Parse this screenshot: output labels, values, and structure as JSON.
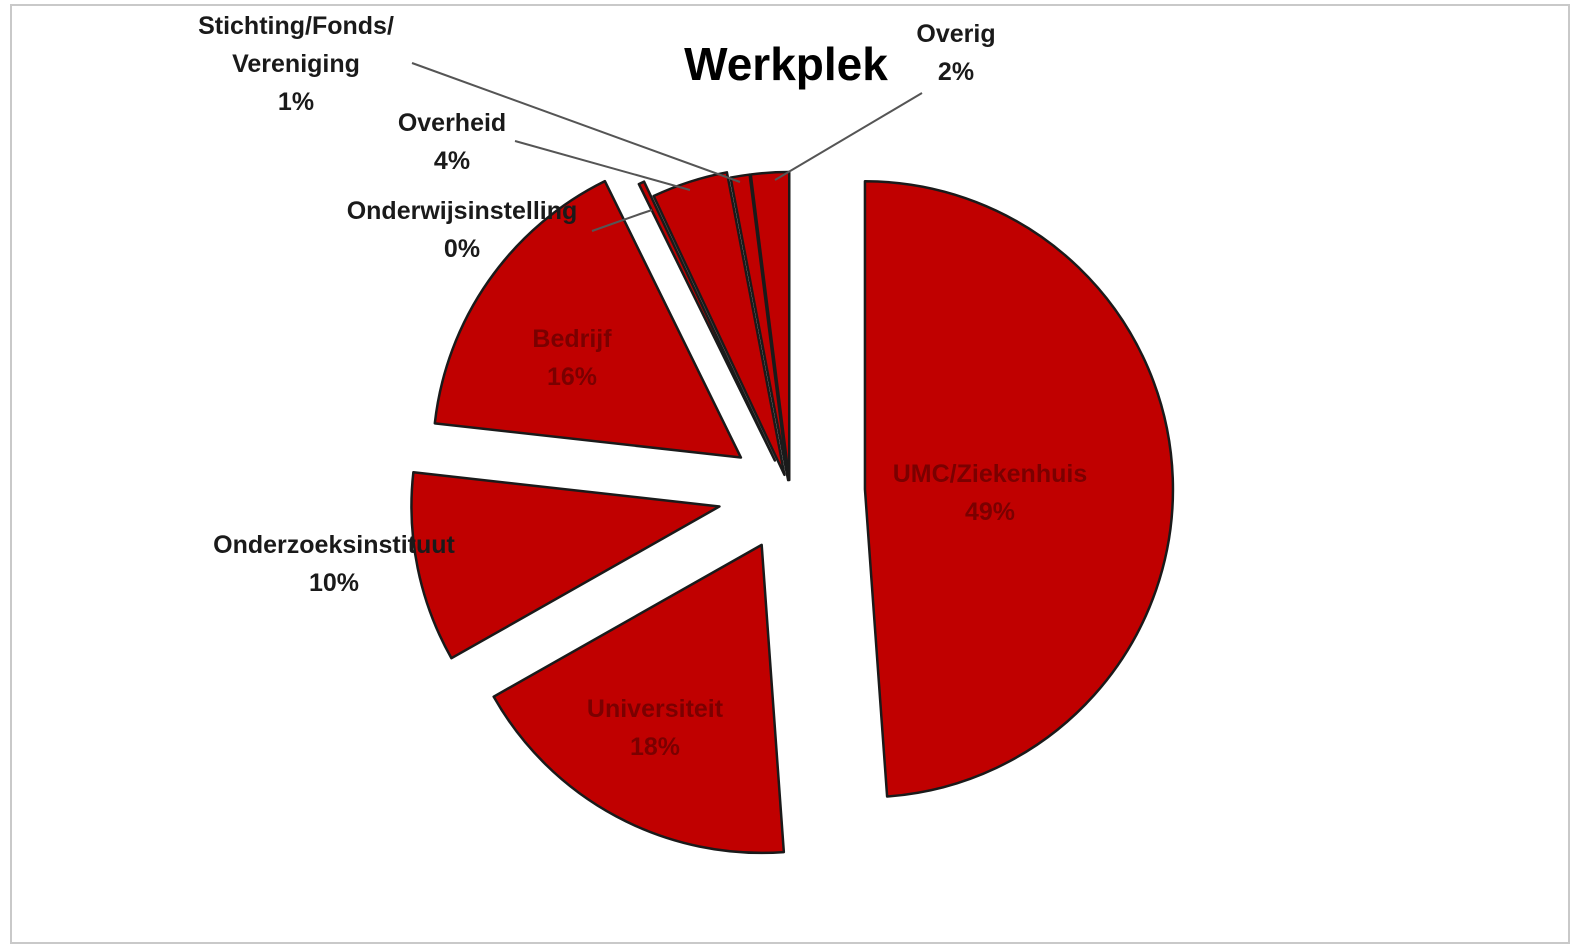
{
  "chart_data": {
    "type": "pie",
    "title": "Werkplek",
    "slices": [
      {
        "label": "UMC/Ziekenhuis",
        "percent_label": "49%",
        "value": 49,
        "label_line1": "UMC/Ziekenhuis",
        "label_line2": "",
        "value_text": "49%"
      },
      {
        "label": "Universiteit",
        "percent_label": "18%",
        "value": 18,
        "label_line1": "Universiteit",
        "label_line2": "",
        "value_text": "18%"
      },
      {
        "label": "Onderzoeksinstituut",
        "percent_label": "10%",
        "value": 10,
        "label_line1": "Onderzoeksinstituut",
        "label_line2": "",
        "value_text": "10%"
      },
      {
        "label": "Bedrijf",
        "percent_label": "16%",
        "value": 16,
        "label_line1": "Bedrijf",
        "label_line2": "",
        "value_text": "16%"
      },
      {
        "label": "Onderwijsinstelling",
        "percent_label": "0%",
        "value": 0.3,
        "label_line1": "Onderwijsinstelling",
        "label_line2": "",
        "value_text": "0%"
      },
      {
        "label": "Overheid",
        "percent_label": "4%",
        "value": 4,
        "label_line1": "Overheid",
        "label_line2": "",
        "value_text": "4%"
      },
      {
        "label": "Stichting/Fonds/Vereniging",
        "percent_label": "1%",
        "value": 1,
        "label_line1": "Stichting/Fonds/",
        "label_line2": "Vereniging",
        "value_text": "1%"
      },
      {
        "label": "Overig",
        "percent_label": "2%",
        "value": 2,
        "label_line1": "Overig",
        "label_line2": "",
        "value_text": "2%"
      }
    ],
    "colors": {
      "slice_fill": "#c00000",
      "slice_stroke": "#1a1a1a",
      "inside_text": "#7a0000",
      "outside_text": "#1a1a1a",
      "leader": "#555555"
    },
    "exploded": true,
    "legend": "none"
  }
}
